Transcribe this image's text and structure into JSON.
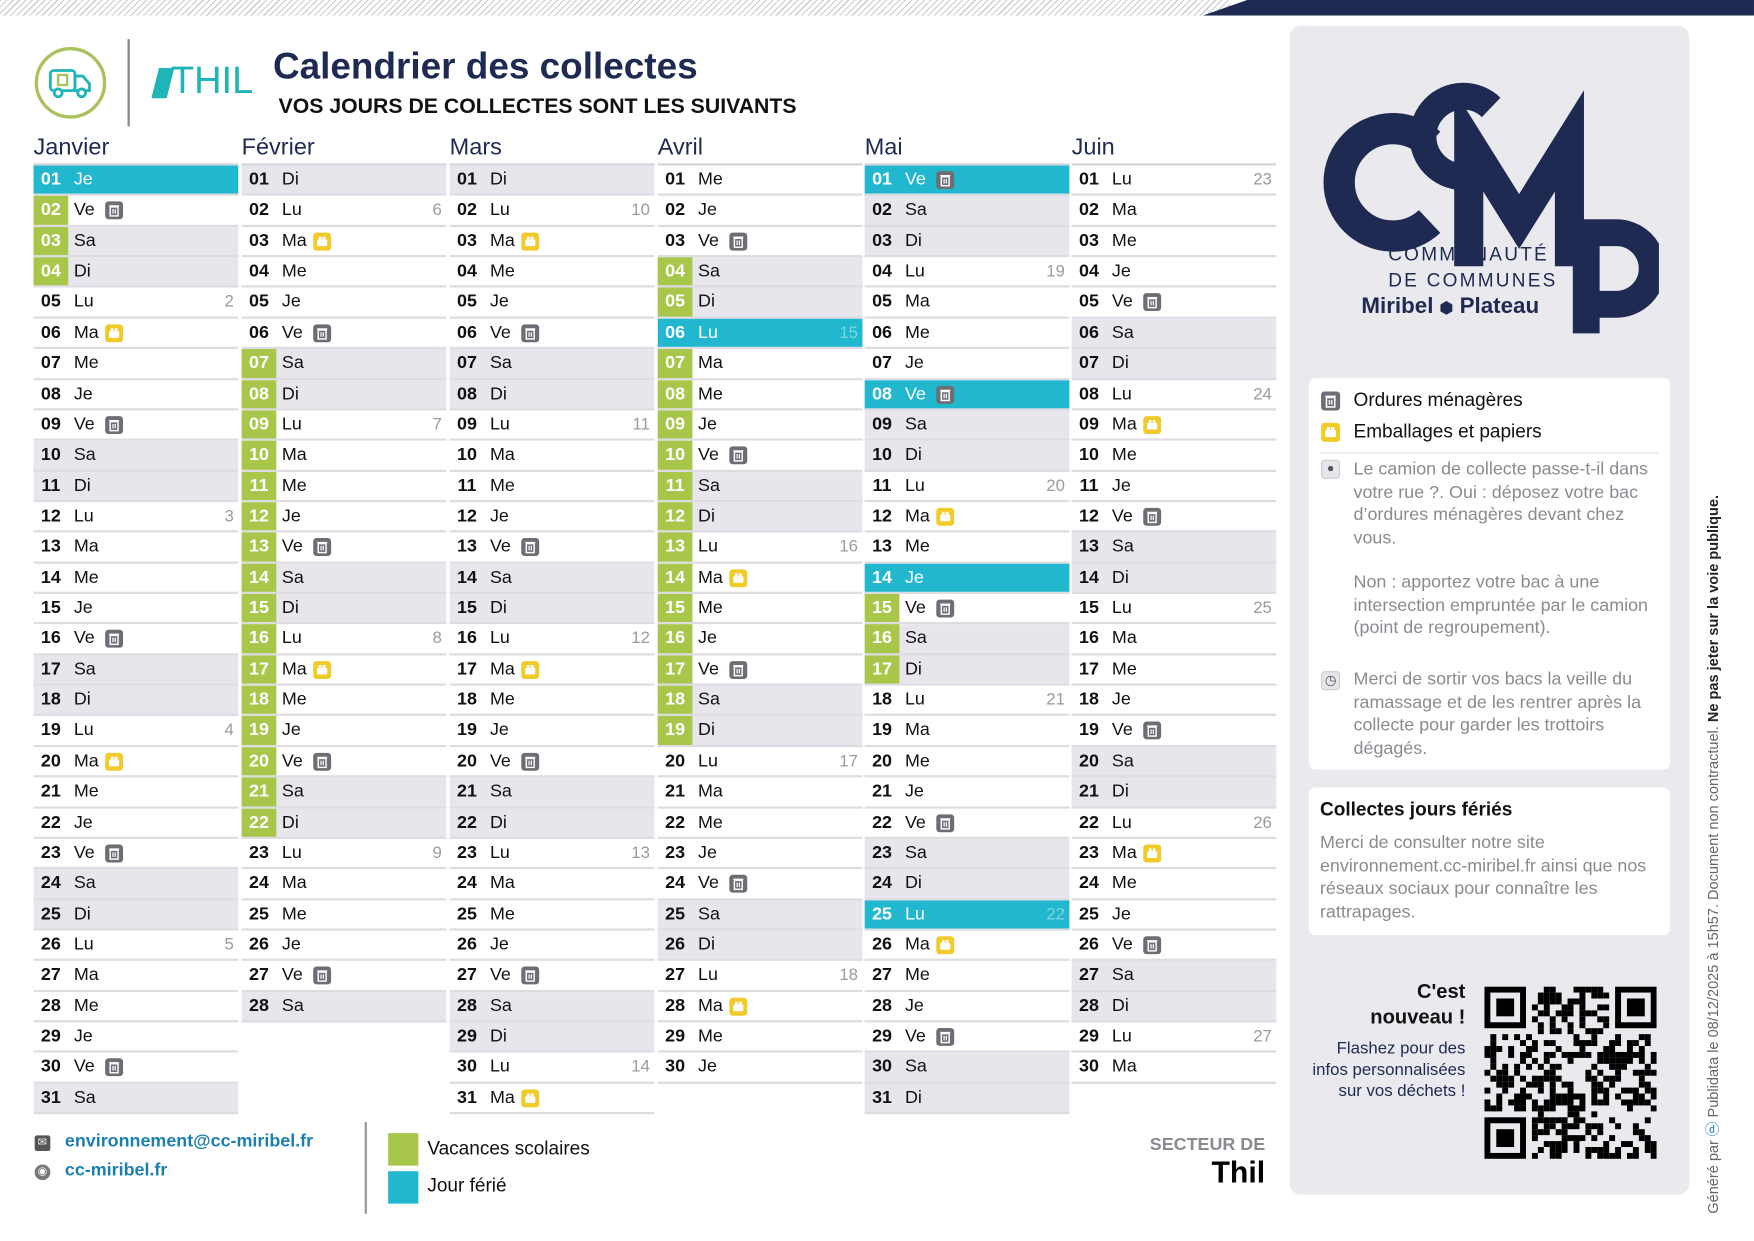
{
  "header": {
    "title": "Calendrier des collectes",
    "subtitle": "VOS JOURS DE COLLECTES SONT LES SUIVANTS",
    "town_logo": "THIL"
  },
  "colors": {
    "vacances": "#a8c64a",
    "ferie": "#21b7cf",
    "navy": "#1f2a52",
    "ordures": "#6d6d75",
    "emballages": "#f0cb2a"
  },
  "months": [
    {
      "name": "Janvier",
      "days": [
        [
          "01",
          "Je",
          "",
          "",
          "f"
        ],
        [
          "02",
          "Ve",
          "",
          "t",
          "v"
        ],
        [
          "03",
          "Sa",
          "",
          "",
          "v"
        ],
        [
          "04",
          "Di",
          "",
          "",
          "v"
        ],
        [
          "05",
          "Lu",
          "2",
          "",
          ""
        ],
        [
          "06",
          "Ma",
          "",
          "b",
          ""
        ],
        [
          "07",
          "Me",
          "",
          "",
          ""
        ],
        [
          "08",
          "Je",
          "",
          "",
          ""
        ],
        [
          "09",
          "Ve",
          "",
          "t",
          ""
        ],
        [
          "10",
          "Sa",
          "",
          "",
          ""
        ],
        [
          "11",
          "Di",
          "",
          "",
          ""
        ],
        [
          "12",
          "Lu",
          "3",
          "",
          ""
        ],
        [
          "13",
          "Ma",
          "",
          "",
          ""
        ],
        [
          "14",
          "Me",
          "",
          "",
          ""
        ],
        [
          "15",
          "Je",
          "",
          "",
          ""
        ],
        [
          "16",
          "Ve",
          "",
          "t",
          ""
        ],
        [
          "17",
          "Sa",
          "",
          "",
          ""
        ],
        [
          "18",
          "Di",
          "",
          "",
          ""
        ],
        [
          "19",
          "Lu",
          "4",
          "",
          ""
        ],
        [
          "20",
          "Ma",
          "",
          "b",
          ""
        ],
        [
          "21",
          "Me",
          "",
          "",
          ""
        ],
        [
          "22",
          "Je",
          "",
          "",
          ""
        ],
        [
          "23",
          "Ve",
          "",
          "t",
          ""
        ],
        [
          "24",
          "Sa",
          "",
          "",
          ""
        ],
        [
          "25",
          "Di",
          "",
          "",
          ""
        ],
        [
          "26",
          "Lu",
          "5",
          "",
          ""
        ],
        [
          "27",
          "Ma",
          "",
          "",
          ""
        ],
        [
          "28",
          "Me",
          "",
          "",
          ""
        ],
        [
          "29",
          "Je",
          "",
          "",
          ""
        ],
        [
          "30",
          "Ve",
          "",
          "t",
          ""
        ],
        [
          "31",
          "Sa",
          "",
          "",
          ""
        ]
      ]
    },
    {
      "name": "Février",
      "days": [
        [
          "01",
          "Di",
          "",
          "",
          ""
        ],
        [
          "02",
          "Lu",
          "6",
          "",
          ""
        ],
        [
          "03",
          "Ma",
          "",
          "b",
          ""
        ],
        [
          "04",
          "Me",
          "",
          "",
          ""
        ],
        [
          "05",
          "Je",
          "",
          "",
          ""
        ],
        [
          "06",
          "Ve",
          "",
          "t",
          ""
        ],
        [
          "07",
          "Sa",
          "",
          "",
          "v"
        ],
        [
          "08",
          "Di",
          "",
          "",
          "v"
        ],
        [
          "09",
          "Lu",
          "7",
          "",
          "v"
        ],
        [
          "10",
          "Ma",
          "",
          "",
          "v"
        ],
        [
          "11",
          "Me",
          "",
          "",
          "v"
        ],
        [
          "12",
          "Je",
          "",
          "",
          "v"
        ],
        [
          "13",
          "Ve",
          "",
          "t",
          "v"
        ],
        [
          "14",
          "Sa",
          "",
          "",
          "v"
        ],
        [
          "15",
          "Di",
          "",
          "",
          "v"
        ],
        [
          "16",
          "Lu",
          "8",
          "",
          "v"
        ],
        [
          "17",
          "Ma",
          "",
          "b",
          "v"
        ],
        [
          "18",
          "Me",
          "",
          "",
          "v"
        ],
        [
          "19",
          "Je",
          "",
          "",
          "v"
        ],
        [
          "20",
          "Ve",
          "",
          "t",
          "v"
        ],
        [
          "21",
          "Sa",
          "",
          "",
          "v"
        ],
        [
          "22",
          "Di",
          "",
          "",
          "v"
        ],
        [
          "23",
          "Lu",
          "9",
          "",
          ""
        ],
        [
          "24",
          "Ma",
          "",
          "",
          ""
        ],
        [
          "25",
          "Me",
          "",
          "",
          ""
        ],
        [
          "26",
          "Je",
          "",
          "",
          ""
        ],
        [
          "27",
          "Ve",
          "",
          "t",
          ""
        ],
        [
          "28",
          "Sa",
          "",
          "",
          ""
        ]
      ]
    },
    {
      "name": "Mars",
      "days": [
        [
          "01",
          "Di",
          "",
          "",
          ""
        ],
        [
          "02",
          "Lu",
          "10",
          "",
          ""
        ],
        [
          "03",
          "Ma",
          "",
          "b",
          ""
        ],
        [
          "04",
          "Me",
          "",
          "",
          ""
        ],
        [
          "05",
          "Je",
          "",
          "",
          ""
        ],
        [
          "06",
          "Ve",
          "",
          "t",
          ""
        ],
        [
          "07",
          "Sa",
          "",
          "",
          ""
        ],
        [
          "08",
          "Di",
          "",
          "",
          ""
        ],
        [
          "09",
          "Lu",
          "11",
          "",
          ""
        ],
        [
          "10",
          "Ma",
          "",
          "",
          ""
        ],
        [
          "11",
          "Me",
          "",
          "",
          ""
        ],
        [
          "12",
          "Je",
          "",
          "",
          ""
        ],
        [
          "13",
          "Ve",
          "",
          "t",
          ""
        ],
        [
          "14",
          "Sa",
          "",
          "",
          ""
        ],
        [
          "15",
          "Di",
          "",
          "",
          ""
        ],
        [
          "16",
          "Lu",
          "12",
          "",
          ""
        ],
        [
          "17",
          "Ma",
          "",
          "b",
          ""
        ],
        [
          "18",
          "Me",
          "",
          "",
          ""
        ],
        [
          "19",
          "Je",
          "",
          "",
          ""
        ],
        [
          "20",
          "Ve",
          "",
          "t",
          ""
        ],
        [
          "21",
          "Sa",
          "",
          "",
          ""
        ],
        [
          "22",
          "Di",
          "",
          "",
          ""
        ],
        [
          "23",
          "Lu",
          "13",
          "",
          ""
        ],
        [
          "24",
          "Ma",
          "",
          "",
          ""
        ],
        [
          "25",
          "Me",
          "",
          "",
          ""
        ],
        [
          "26",
          "Je",
          "",
          "",
          ""
        ],
        [
          "27",
          "Ve",
          "",
          "t",
          ""
        ],
        [
          "28",
          "Sa",
          "",
          "",
          ""
        ],
        [
          "29",
          "Di",
          "",
          "",
          ""
        ],
        [
          "30",
          "Lu",
          "14",
          "",
          ""
        ],
        [
          "31",
          "Ma",
          "",
          "b",
          ""
        ]
      ]
    },
    {
      "name": "Avril",
      "days": [
        [
          "01",
          "Me",
          "",
          "",
          ""
        ],
        [
          "02",
          "Je",
          "",
          "",
          ""
        ],
        [
          "03",
          "Ve",
          "",
          "t",
          ""
        ],
        [
          "04",
          "Sa",
          "",
          "",
          "v"
        ],
        [
          "05",
          "Di",
          "",
          "",
          "v"
        ],
        [
          "06",
          "Lu",
          "15",
          "",
          "f"
        ],
        [
          "07",
          "Ma",
          "",
          "",
          "v"
        ],
        [
          "08",
          "Me",
          "",
          "",
          "v"
        ],
        [
          "09",
          "Je",
          "",
          "",
          "v"
        ],
        [
          "10",
          "Ve",
          "",
          "t",
          "v"
        ],
        [
          "11",
          "Sa",
          "",
          "",
          "v"
        ],
        [
          "12",
          "Di",
          "",
          "",
          "v"
        ],
        [
          "13",
          "Lu",
          "16",
          "",
          "v"
        ],
        [
          "14",
          "Ma",
          "",
          "b",
          "v"
        ],
        [
          "15",
          "Me",
          "",
          "",
          "v"
        ],
        [
          "16",
          "Je",
          "",
          "",
          "v"
        ],
        [
          "17",
          "Ve",
          "",
          "t",
          "v"
        ],
        [
          "18",
          "Sa",
          "",
          "",
          "v"
        ],
        [
          "19",
          "Di",
          "",
          "",
          "v"
        ],
        [
          "20",
          "Lu",
          "17",
          "",
          ""
        ],
        [
          "21",
          "Ma",
          "",
          "",
          ""
        ],
        [
          "22",
          "Me",
          "",
          "",
          ""
        ],
        [
          "23",
          "Je",
          "",
          "",
          ""
        ],
        [
          "24",
          "Ve",
          "",
          "t",
          ""
        ],
        [
          "25",
          "Sa",
          "",
          "",
          ""
        ],
        [
          "26",
          "Di",
          "",
          "",
          ""
        ],
        [
          "27",
          "Lu",
          "18",
          "",
          ""
        ],
        [
          "28",
          "Ma",
          "",
          "b",
          ""
        ],
        [
          "29",
          "Me",
          "",
          "",
          ""
        ],
        [
          "30",
          "Je",
          "",
          "",
          ""
        ]
      ]
    },
    {
      "name": "Mai",
      "days": [
        [
          "01",
          "Ve",
          "",
          "t",
          "f"
        ],
        [
          "02",
          "Sa",
          "",
          "",
          ""
        ],
        [
          "03",
          "Di",
          "",
          "",
          ""
        ],
        [
          "04",
          "Lu",
          "19",
          "",
          ""
        ],
        [
          "05",
          "Ma",
          "",
          "",
          ""
        ],
        [
          "06",
          "Me",
          "",
          "",
          ""
        ],
        [
          "07",
          "Je",
          "",
          "",
          ""
        ],
        [
          "08",
          "Ve",
          "",
          "t",
          "f"
        ],
        [
          "09",
          "Sa",
          "",
          "",
          ""
        ],
        [
          "10",
          "Di",
          "",
          "",
          ""
        ],
        [
          "11",
          "Lu",
          "20",
          "",
          ""
        ],
        [
          "12",
          "Ma",
          "",
          "b",
          ""
        ],
        [
          "13",
          "Me",
          "",
          "",
          ""
        ],
        [
          "14",
          "Je",
          "",
          "",
          "f"
        ],
        [
          "15",
          "Ve",
          "",
          "t",
          "v"
        ],
        [
          "16",
          "Sa",
          "",
          "",
          "v"
        ],
        [
          "17",
          "Di",
          "",
          "",
          "v"
        ],
        [
          "18",
          "Lu",
          "21",
          "",
          ""
        ],
        [
          "19",
          "Ma",
          "",
          "",
          ""
        ],
        [
          "20",
          "Me",
          "",
          "",
          ""
        ],
        [
          "21",
          "Je",
          "",
          "",
          ""
        ],
        [
          "22",
          "Ve",
          "",
          "t",
          ""
        ],
        [
          "23",
          "Sa",
          "",
          "",
          ""
        ],
        [
          "24",
          "Di",
          "",
          "",
          ""
        ],
        [
          "25",
          "Lu",
          "22",
          "",
          "f"
        ],
        [
          "26",
          "Ma",
          "",
          "b",
          ""
        ],
        [
          "27",
          "Me",
          "",
          "",
          ""
        ],
        [
          "28",
          "Je",
          "",
          "",
          ""
        ],
        [
          "29",
          "Ve",
          "",
          "t",
          ""
        ],
        [
          "30",
          "Sa",
          "",
          "",
          ""
        ],
        [
          "31",
          "Di",
          "",
          "",
          ""
        ]
      ]
    },
    {
      "name": "Juin",
      "days": [
        [
          "01",
          "Lu",
          "23",
          "",
          ""
        ],
        [
          "02",
          "Ma",
          "",
          "",
          ""
        ],
        [
          "03",
          "Me",
          "",
          "",
          ""
        ],
        [
          "04",
          "Je",
          "",
          "",
          ""
        ],
        [
          "05",
          "Ve",
          "",
          "t",
          ""
        ],
        [
          "06",
          "Sa",
          "",
          "",
          ""
        ],
        [
          "07",
          "Di",
          "",
          "",
          ""
        ],
        [
          "08",
          "Lu",
          "24",
          "",
          ""
        ],
        [
          "09",
          "Ma",
          "",
          "b",
          ""
        ],
        [
          "10",
          "Me",
          "",
          "",
          ""
        ],
        [
          "11",
          "Je",
          "",
          "",
          ""
        ],
        [
          "12",
          "Ve",
          "",
          "t",
          ""
        ],
        [
          "13",
          "Sa",
          "",
          "",
          ""
        ],
        [
          "14",
          "Di",
          "",
          "",
          ""
        ],
        [
          "15",
          "Lu",
          "25",
          "",
          ""
        ],
        [
          "16",
          "Ma",
          "",
          "",
          ""
        ],
        [
          "17",
          "Me",
          "",
          "",
          ""
        ],
        [
          "18",
          "Je",
          "",
          "",
          ""
        ],
        [
          "19",
          "Ve",
          "",
          "t",
          ""
        ],
        [
          "20",
          "Sa",
          "",
          "",
          ""
        ],
        [
          "21",
          "Di",
          "",
          "",
          ""
        ],
        [
          "22",
          "Lu",
          "26",
          "",
          ""
        ],
        [
          "23",
          "Ma",
          "",
          "b",
          ""
        ],
        [
          "24",
          "Me",
          "",
          "",
          ""
        ],
        [
          "25",
          "Je",
          "",
          "",
          ""
        ],
        [
          "26",
          "Ve",
          "",
          "t",
          ""
        ],
        [
          "27",
          "Sa",
          "",
          "",
          ""
        ],
        [
          "28",
          "Di",
          "",
          "",
          ""
        ],
        [
          "29",
          "Lu",
          "27",
          "",
          ""
        ],
        [
          "30",
          "Ma",
          "",
          "",
          ""
        ]
      ]
    }
  ],
  "sidebar": {
    "logo": {
      "letters": "CCMP",
      "line1": "COMMUNAUTÉ",
      "line2": "DE COMMUNES",
      "line3a": "Miribel",
      "line3b": "Plateau"
    },
    "legend": {
      "ordures": "Ordures ménagères",
      "emballages": "Emballages et papiers"
    },
    "info1": "Le camion de collecte passe-t-il dans votre rue ?. Oui : déposez votre bac d’ordures ménagères devant chez vous.",
    "info1b": "Non : apportez votre bac à une intersection empruntée par le camion (point de regroupement).",
    "info2": "Merci de sortir vos bacs la veille du ramassage et de les rentrer après la collecte pour garder les trottoirs dégagés.",
    "feries_title": "Collectes jours fériés",
    "feries_text": "Merci de consulter notre site environnement.cc-miribel.fr ainsi que nos réseaux sociaux pour connaître les rattrapages.",
    "new_title1": "C'est",
    "new_title2": "nouveau !",
    "new_text": "Flashez pour des infos personnalisées sur vos déchets !"
  },
  "footer": {
    "email": "environnement@cc-miribel.fr",
    "website": "cc-miribel.fr",
    "legend_vacances": "Vacances scolaires",
    "legend_ferie": "Jour férié",
    "sector_label": "SECTEUR DE",
    "sector_name": "Thil"
  },
  "side_note": {
    "prefix": "Généré par",
    "brand": "Publidata",
    "date": " le 08/12/2025 à 15h57. Document non contractuel.",
    "warning": "Ne pas jeter sur la voie publique."
  }
}
